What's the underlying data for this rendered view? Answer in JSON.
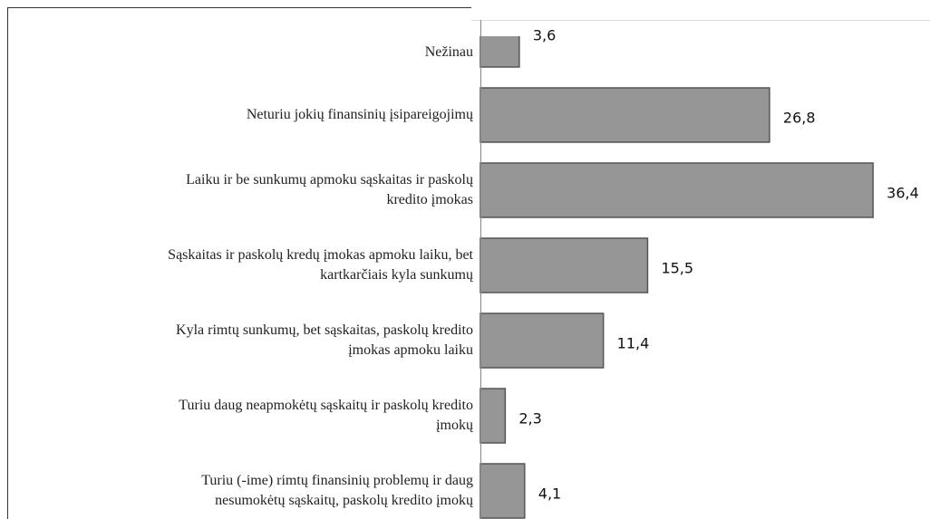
{
  "chart_data": {
    "type": "barh",
    "categories": [
      "Nežinau",
      "Neturiu jokių finansinių įsipareigojimų",
      "Laiku ir be sunkumų apmoku sąskaitas ir paskolų\nkredito įmokas",
      "Sąskaitas ir paskolų kredų įmokas apmoku laiku, bet\nkartkarčiais kyla sunkumų",
      "Kyla rimtų sunkumų, bet sąskaitas, paskolų kredito\nįmokas apmoku laiku",
      "Turiu daug neapmokėtų sąskaitų ir paskolų kredito\nįmokų",
      "Turiu (-ime) rimtų finansinių problemų ir daug\nnesumokėtų sąskaitų, paskolų kredito įmokų"
    ],
    "values": [
      3.6,
      26.8,
      36.4,
      15.5,
      11.4,
      2.3,
      4.1
    ],
    "value_labels": [
      "3,6",
      "26,8",
      "36,4",
      "15,5",
      "11,4",
      "2,3",
      "4,1"
    ],
    "color": "#969696",
    "xlim": [
      0,
      40
    ]
  }
}
